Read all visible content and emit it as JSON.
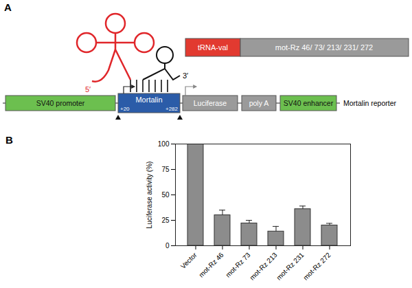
{
  "diagram": {
    "panel_label": "A",
    "ribozyme_construct": [
      "tRNA-val",
      "mot-Rz 46/ 73/ 213/ 231/ 272"
    ],
    "rna_ends": [
      "5′",
      "3′"
    ],
    "positions": [
      "+20",
      "+282"
    ],
    "reporter_elements": [
      "SV40 promoter",
      "Mortalin",
      "Luciferase",
      "poly A",
      "SV40 enhancer"
    ],
    "reporter_name": "Mortalin reporter"
  },
  "chart_data": {
    "panel_label": "B",
    "type": "bar",
    "y_label": "Luciferase activity (%)",
    "categories": [
      "Vector",
      "mot-Rz 46",
      "mot-Rz 73",
      "mot-Rz 213",
      "mot-Rz 231",
      "mot-Rz 272"
    ],
    "values": [
      100,
      30,
      22,
      14,
      36,
      20
    ],
    "errors": [
      null,
      5,
      3,
      5,
      3,
      2
    ],
    "color": "#8c8c8c",
    "ylim": [
      0,
      100
    ],
    "yticks": [
      0,
      25,
      50,
      75,
      100
    ],
    "grid": false
  }
}
